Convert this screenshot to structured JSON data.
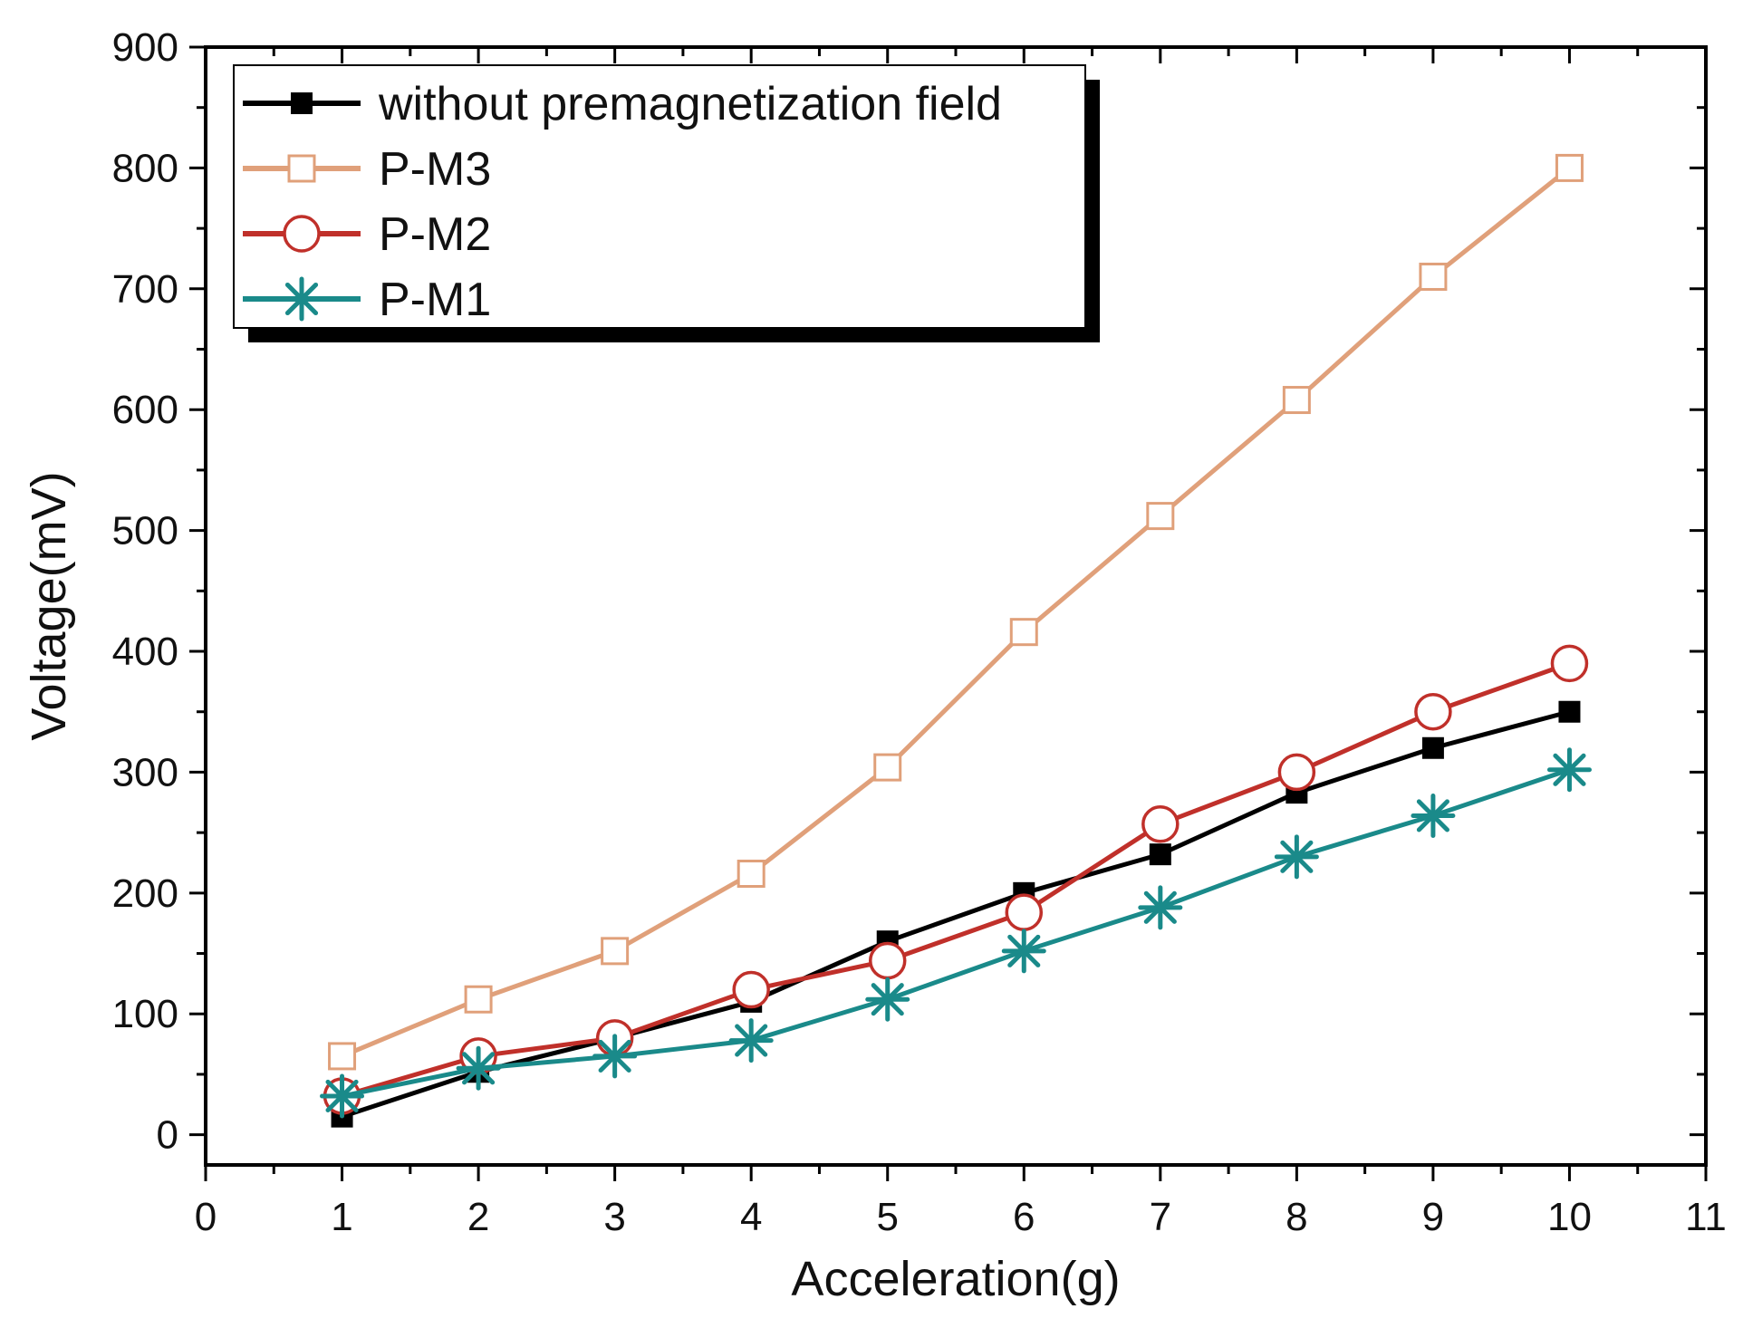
{
  "chart_data": {
    "type": "line",
    "title": "",
    "xlabel": "Acceleration(g)",
    "ylabel": "Voltage(mV)",
    "xlim": [
      0,
      11
    ],
    "ylim": [
      -25,
      900
    ],
    "xticks": [
      0,
      1,
      2,
      3,
      4,
      5,
      6,
      7,
      8,
      9,
      10,
      11
    ],
    "yticks": [
      0,
      100,
      200,
      300,
      400,
      500,
      600,
      700,
      800,
      900
    ],
    "grid": false,
    "legend_position": "top-left",
    "x": [
      1,
      2,
      3,
      4,
      5,
      6,
      7,
      8,
      9,
      10
    ],
    "series": [
      {
        "name": "without premagnetization field",
        "color": "#000000",
        "marker": "filled-square",
        "values": [
          15,
          52,
          80,
          110,
          160,
          200,
          232,
          283,
          320,
          350
        ]
      },
      {
        "name": "P-M3",
        "color": "#e0a07a",
        "marker": "open-square",
        "values": [
          65,
          112,
          152,
          216,
          304,
          416,
          512,
          608,
          710,
          800
        ]
      },
      {
        "name": "P-M2",
        "color": "#c0302a",
        "marker": "open-circle",
        "values": [
          32,
          65,
          80,
          120,
          144,
          184,
          257,
          300,
          350,
          390
        ]
      },
      {
        "name": "P-M1",
        "color": "#1a8a8a",
        "marker": "asterisk",
        "values": [
          32,
          55,
          65,
          78,
          112,
          152,
          188,
          230,
          264,
          302
        ]
      }
    ]
  }
}
